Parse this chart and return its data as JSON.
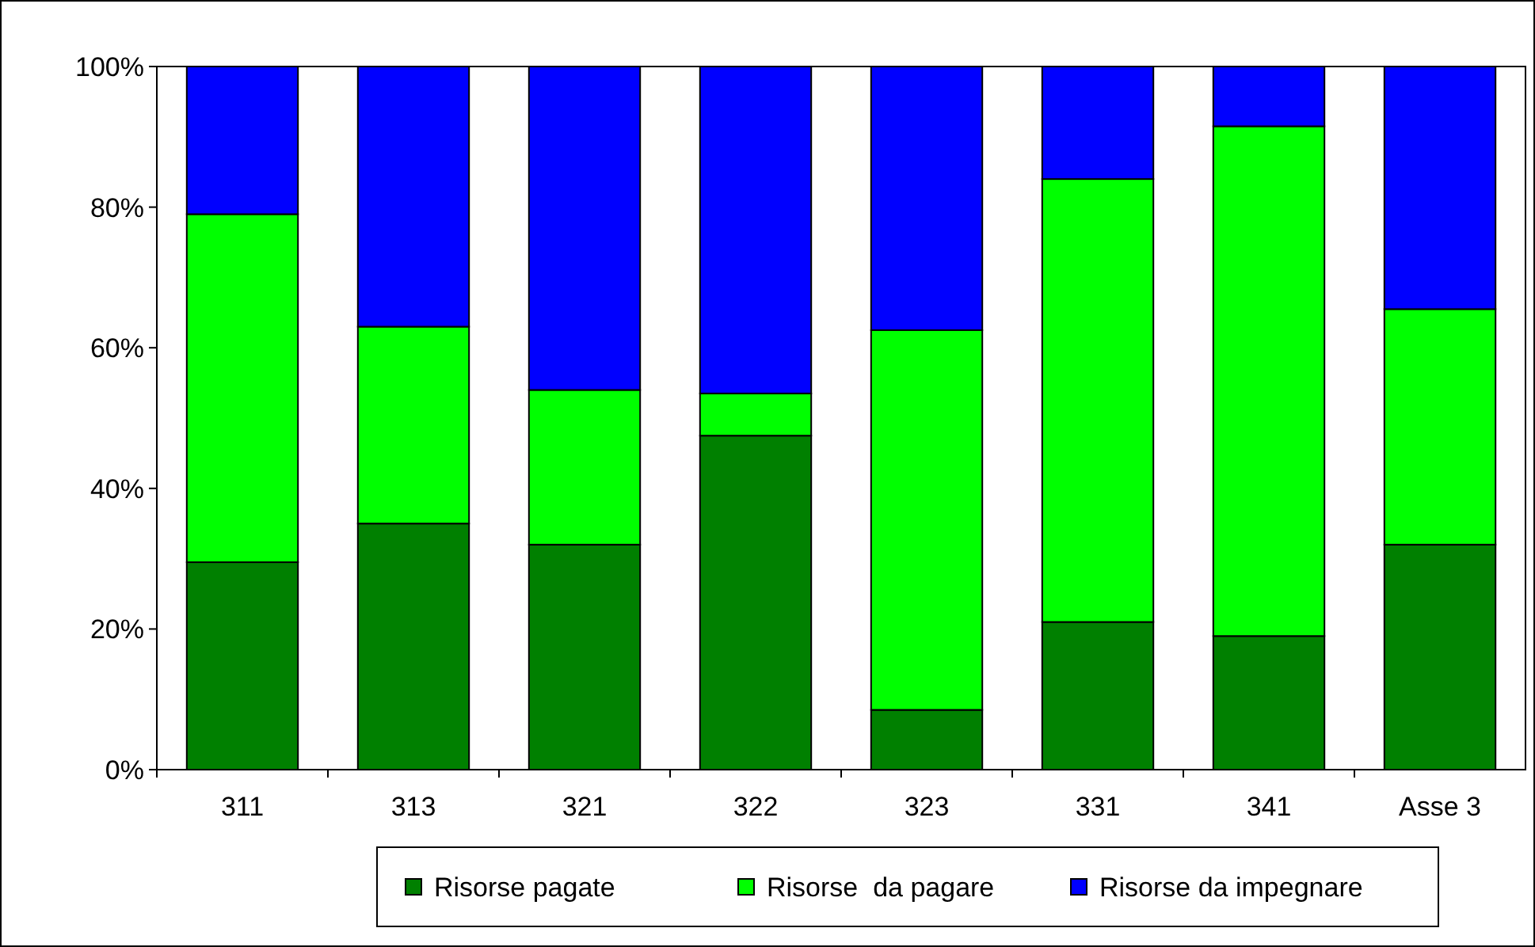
{
  "chart_data": {
    "type": "bar",
    "stacked": true,
    "categories": [
      "311",
      "313",
      "321",
      "322",
      "323",
      "331",
      "341",
      "Asse 3"
    ],
    "series": [
      {
        "name": "Risorse pagate",
        "color": "#008000",
        "values": [
          29.5,
          35,
          32,
          47.5,
          8.5,
          21,
          19,
          32
        ]
      },
      {
        "name": "Risorse  da pagare",
        "color": "#00ff00",
        "values": [
          49.5,
          28,
          22,
          6,
          54,
          63,
          72.5,
          33.5
        ]
      },
      {
        "name": "Risorse da impegnare",
        "color": "#0000ff",
        "values": [
          21,
          37,
          46,
          46.5,
          37.5,
          16,
          8.5,
          34.5
        ]
      }
    ],
    "ylim": [
      0,
      100
    ],
    "yticks": [
      {
        "value": 0,
        "label": "0%"
      },
      {
        "value": 20,
        "label": "20%"
      },
      {
        "value": 40,
        "label": "40%"
      },
      {
        "value": 60,
        "label": "60%"
      },
      {
        "value": 80,
        "label": "80%"
      },
      {
        "value": 100,
        "label": "100%"
      }
    ],
    "grid": false,
    "legend": "bottom"
  }
}
